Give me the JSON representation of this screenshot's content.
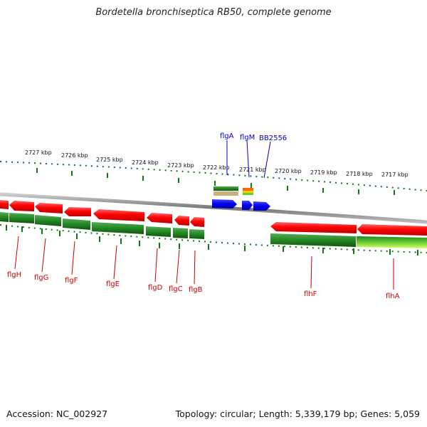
{
  "title": "Bordetella bronchiseptica RB50, complete genome",
  "footer": {
    "accession": "Accession: NC_002927",
    "summary": "Topology: circular; Length: 5,339,179 bp; Genes: 5,059"
  },
  "scale_labels": [
    "2727 kbp",
    "2726 kbp",
    "2725 kbp",
    "2724 kbp",
    "2723 kbp",
    "2722 kbp",
    "2721 kbp",
    "2720 kbp",
    "2719 kbp",
    "2718 kbp",
    "2717 kbp"
  ],
  "genes_bottom": [
    "flgH",
    "flgG",
    "flgF",
    "flgE",
    "flgD",
    "flgC",
    "flgB",
    "flhF",
    "flhA"
  ],
  "genes_top": [
    "flgA",
    "flgM",
    "BB2556"
  ],
  "colors": {
    "forward_gene": "#0000ee",
    "reverse_gene": "#ee0000",
    "cds_green": "#228822",
    "backbone": "#888888",
    "ticks": "#117711",
    "label_red": "#cc0000",
    "label_blue": "#0000cc"
  }
}
